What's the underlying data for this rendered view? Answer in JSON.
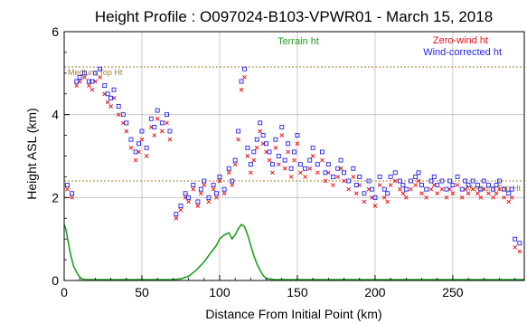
{
  "chart_data": {
    "type": "scatter",
    "title": "Height Profile : O097024-B103-VPWR01 - March 15, 2018",
    "xlabel": "Distance From Initial Point (km)",
    "ylabel": "Height ASL (km)",
    "xlim": [
      0,
      296
    ],
    "ylim": [
      0,
      6
    ],
    "xticks": [
      0,
      50,
      100,
      150,
      200,
      250
    ],
    "xtick_labels": [
      "0",
      "50",
      "100",
      "150",
      "200",
      "250"
    ],
    "yticks": [
      0,
      2,
      4,
      6
    ],
    "ytick_labels": [
      "0",
      "2",
      "4",
      "6"
    ],
    "grid": true,
    "legend_placement": "top-right",
    "medium_top_lines": [
      {
        "label": "Medium Top Ht",
        "y": 5.15,
        "label_at": "left",
        "color": "#a67c2e"
      },
      {
        "label": "Medium Top Ht",
        "y": 2.4,
        "label_at": "right",
        "color": "#a67c2e"
      }
    ],
    "series": [
      {
        "name": "Terrain ht",
        "kind": "line",
        "color": "#1fa01f",
        "x": [
          0,
          1,
          2,
          3,
          4,
          5,
          6,
          8,
          10,
          12,
          14,
          16,
          20,
          30,
          40,
          50,
          60,
          70,
          75,
          80,
          85,
          90,
          95,
          98,
          100,
          103,
          106,
          108,
          110,
          112,
          114,
          116,
          118,
          120,
          122,
          124,
          126,
          128,
          130,
          135,
          150,
          200,
          250,
          296
        ],
        "y": [
          1.35,
          1.25,
          1.05,
          0.85,
          0.65,
          0.5,
          0.35,
          0.2,
          0.08,
          0.03,
          0.02,
          0.02,
          0.02,
          0.02,
          0.02,
          0.02,
          0.02,
          0.02,
          0.04,
          0.1,
          0.25,
          0.45,
          0.7,
          0.85,
          1.0,
          1.1,
          1.15,
          1.0,
          1.1,
          1.25,
          1.35,
          1.3,
          1.1,
          0.85,
          0.6,
          0.4,
          0.25,
          0.12,
          0.05,
          0.02,
          0.02,
          0.02,
          0.02,
          0.02
        ]
      },
      {
        "name": "Zero-wind ht",
        "kind": "markers-x",
        "color": "#ee1111",
        "x": [
          2,
          5,
          8,
          10,
          13,
          16,
          18,
          20,
          23,
          26,
          28,
          30,
          32,
          35,
          38,
          40,
          43,
          46,
          48,
          50,
          53,
          56,
          58,
          60,
          63,
          66,
          68,
          72,
          75,
          78,
          80,
          83,
          86,
          88,
          90,
          93,
          96,
          98,
          100,
          103,
          106,
          108,
          110,
          112,
          114,
          116,
          118,
          120,
          122,
          124,
          126,
          128,
          130,
          132,
          134,
          136,
          138,
          140,
          142,
          144,
          146,
          148,
          150,
          152,
          155,
          158,
          160,
          163,
          166,
          168,
          170,
          173,
          176,
          178,
          180,
          183,
          186,
          188,
          190,
          193,
          196,
          198,
          200,
          203,
          206,
          208,
          210,
          213,
          216,
          218,
          220,
          223,
          226,
          228,
          230,
          233,
          236,
          238,
          240,
          243,
          246,
          248,
          250,
          253,
          256,
          258,
          260,
          263,
          266,
          268,
          270,
          273,
          276,
          278,
          280,
          283,
          286,
          288,
          290,
          293
        ],
        "y": [
          2.2,
          2.0,
          4.7,
          4.8,
          4.9,
          4.7,
          4.6,
          4.8,
          4.9,
          4.5,
          4.3,
          4.2,
          4.4,
          4.0,
          3.8,
          3.6,
          3.2,
          2.9,
          3.1,
          3.4,
          3.0,
          3.7,
          3.5,
          3.9,
          3.6,
          3.8,
          3.4,
          1.5,
          1.7,
          2.0,
          1.9,
          2.2,
          1.8,
          2.1,
          2.3,
          1.9,
          2.2,
          2.0,
          2.4,
          2.1,
          2.6,
          2.3,
          2.8,
          3.4,
          4.6,
          4.9,
          3.0,
          2.6,
          2.9,
          3.2,
          3.6,
          3.3,
          3.1,
          2.9,
          2.6,
          3.2,
          2.8,
          3.5,
          2.7,
          3.1,
          2.5,
          2.9,
          3.3,
          2.6,
          2.5,
          2.7,
          3.0,
          2.6,
          2.9,
          2.4,
          2.6,
          2.3,
          2.5,
          2.7,
          2.4,
          2.2,
          2.5,
          2.1,
          2.3,
          1.9,
          2.2,
          2.0,
          1.8,
          2.3,
          2.0,
          1.9,
          2.3,
          2.4,
          2.2,
          2.1,
          2.0,
          2.2,
          2.3,
          2.4,
          2.1,
          2.0,
          2.2,
          2.3,
          2.1,
          2.2,
          2.0,
          2.2,
          2.1,
          2.3,
          2.0,
          2.2,
          2.1,
          2.2,
          2.1,
          2.0,
          2.2,
          2.1,
          2.0,
          2.1,
          2.2,
          2.0,
          1.9,
          2.0,
          0.8,
          0.7
        ]
      },
      {
        "name": "Wind-corrected ht",
        "kind": "markers-square",
        "color": "#2222ee",
        "x": [
          2,
          5,
          8,
          10,
          13,
          16,
          18,
          20,
          23,
          26,
          28,
          30,
          32,
          35,
          38,
          40,
          43,
          46,
          48,
          50,
          53,
          56,
          58,
          60,
          63,
          66,
          68,
          72,
          75,
          78,
          80,
          83,
          86,
          88,
          90,
          93,
          96,
          98,
          100,
          103,
          106,
          108,
          110,
          112,
          114,
          116,
          118,
          120,
          122,
          124,
          126,
          128,
          130,
          132,
          134,
          136,
          138,
          140,
          142,
          144,
          146,
          148,
          150,
          152,
          155,
          158,
          160,
          163,
          166,
          168,
          170,
          173,
          176,
          178,
          180,
          183,
          186,
          188,
          190,
          193,
          196,
          198,
          200,
          203,
          206,
          208,
          210,
          213,
          216,
          218,
          220,
          223,
          226,
          228,
          230,
          233,
          236,
          238,
          240,
          243,
          246,
          248,
          250,
          253,
          256,
          258,
          260,
          263,
          266,
          268,
          270,
          273,
          276,
          278,
          280,
          283,
          286,
          288,
          290,
          293
        ],
        "y": [
          2.3,
          2.1,
          4.8,
          4.9,
          5.0,
          4.8,
          4.8,
          5.0,
          5.1,
          4.7,
          4.5,
          4.4,
          4.6,
          4.2,
          4.0,
          3.8,
          3.4,
          3.1,
          3.3,
          3.6,
          3.2,
          3.9,
          3.7,
          4.1,
          3.8,
          4.0,
          3.6,
          1.6,
          1.8,
          2.1,
          2.0,
          2.3,
          1.9,
          2.2,
          2.4,
          2.0,
          2.3,
          2.1,
          2.5,
          2.2,
          2.7,
          2.4,
          2.9,
          3.6,
          4.8,
          5.1,
          3.2,
          2.8,
          3.1,
          3.4,
          3.8,
          3.5,
          3.3,
          3.1,
          2.8,
          3.4,
          3.0,
          3.7,
          2.9,
          3.3,
          2.7,
          3.1,
          3.5,
          2.8,
          2.7,
          2.9,
          3.2,
          2.8,
          3.1,
          2.6,
          2.8,
          2.5,
          2.7,
          2.9,
          2.6,
          2.4,
          2.7,
          2.3,
          2.5,
          2.1,
          2.4,
          2.2,
          2.0,
          2.5,
          2.2,
          2.1,
          2.5,
          2.6,
          2.4,
          2.3,
          2.2,
          2.4,
          2.5,
          2.6,
          2.3,
          2.2,
          2.4,
          2.5,
          2.3,
          2.4,
          2.2,
          2.4,
          2.3,
          2.5,
          2.2,
          2.4,
          2.3,
          2.4,
          2.3,
          2.2,
          2.4,
          2.3,
          2.2,
          2.3,
          2.4,
          2.2,
          2.1,
          2.2,
          1.0,
          0.9
        ]
      }
    ]
  }
}
